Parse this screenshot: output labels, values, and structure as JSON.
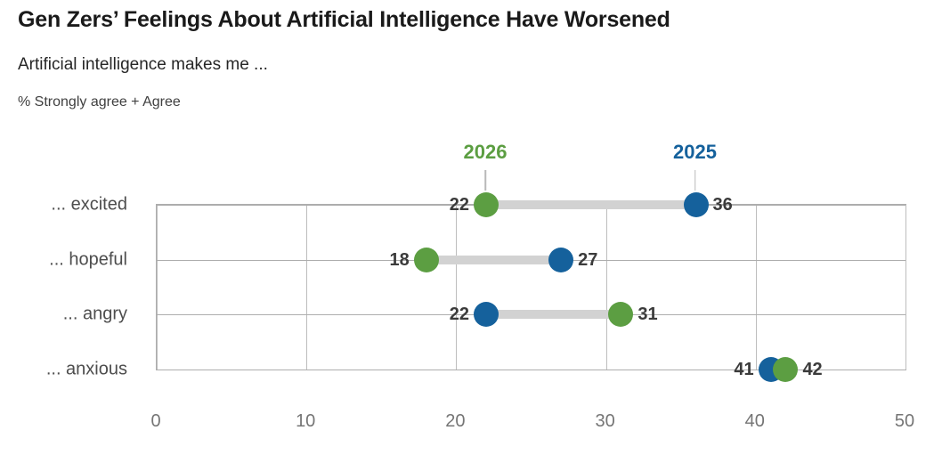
{
  "header": {
    "title": "Gen Zers’ Feelings About Artificial Intelligence Have Worsened",
    "subtitle": "Artificial intelligence makes me ...",
    "measure_note": "% Strongly agree + Agree"
  },
  "colors": {
    "series_2026": "#5c9e42",
    "series_2025": "#15619c",
    "connector": "#d2d2d2",
    "grid_vertical": "#bdbdbd",
    "grid_horizontal": "#adadad",
    "value_label": "#3b3b3b",
    "axis_label": "#757575",
    "category_label": "#4d4d4d",
    "title_text": "#1a1a1a"
  },
  "chart_data": {
    "type": "dumbbell",
    "title": "Gen Zers’ Feelings About Artificial Intelligence Have Worsened",
    "subtitle": "Artificial intelligence makes me ...",
    "measure": "% Strongly agree + Agree",
    "categories": [
      "... excited",
      "... hopeful",
      "... angry",
      "... anxious"
    ],
    "series": [
      {
        "name": "2026",
        "color": "#5c9e42",
        "values": [
          22,
          18,
          31,
          42
        ]
      },
      {
        "name": "2025",
        "color": "#15619c",
        "values": [
          36,
          27,
          22,
          41
        ]
      }
    ],
    "xlim": [
      0,
      50
    ],
    "xticks": [
      0,
      10,
      20,
      30,
      40,
      50
    ],
    "grid": true,
    "legend_position": "above-first-row-points",
    "value_labels": "outside-ends"
  }
}
